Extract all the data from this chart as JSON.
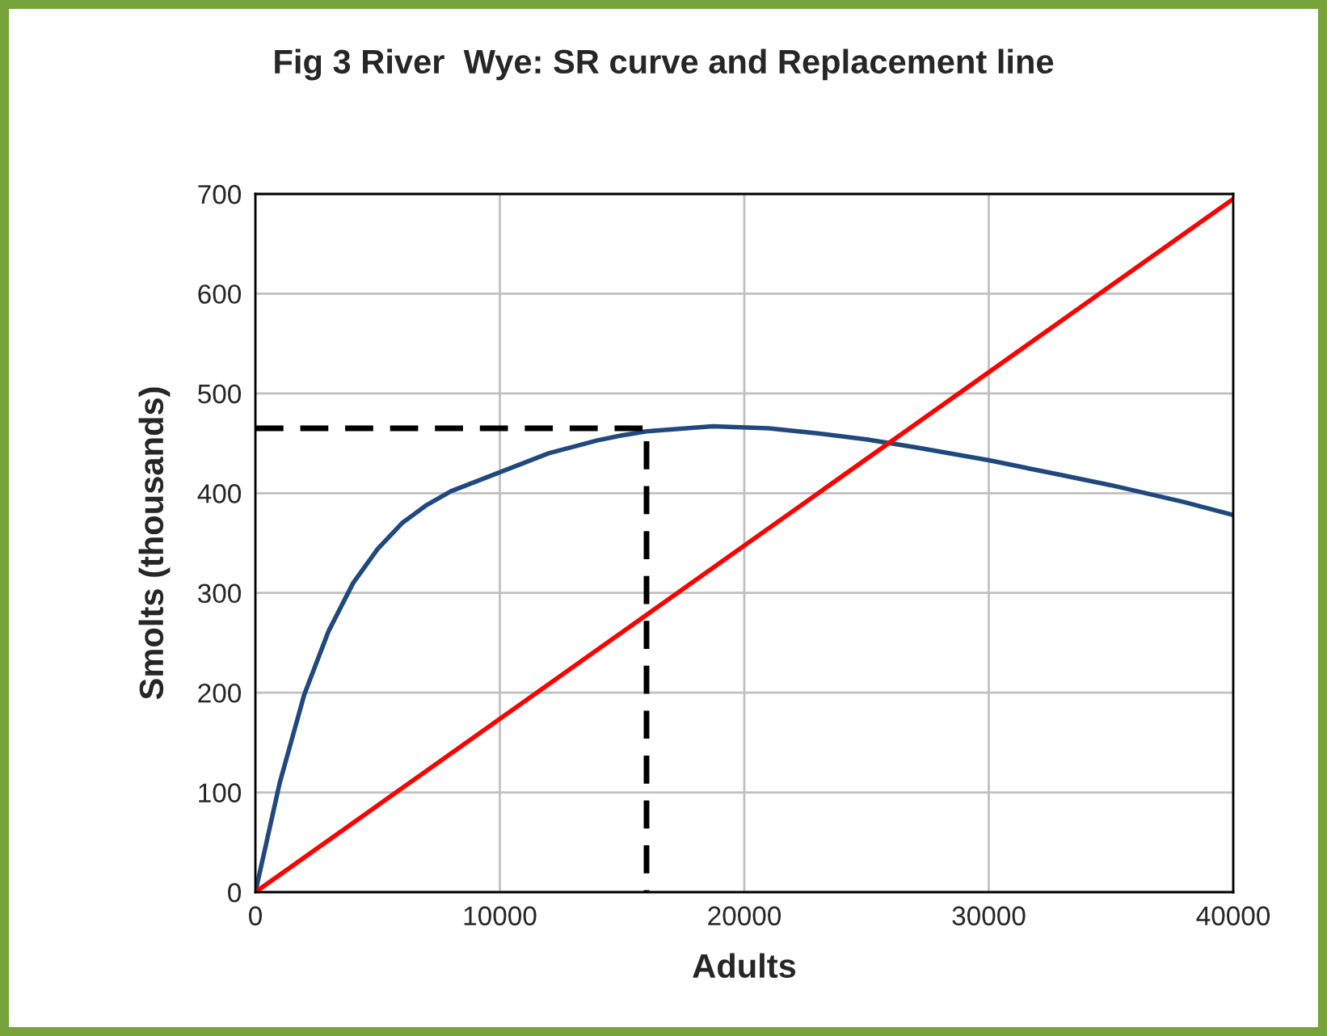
{
  "chart_data": {
    "type": "line",
    "title": "Fig 3 River  Wye: SR curve and Replacement line",
    "xlabel": "Adults",
    "ylabel": "Smolts (thousands)",
    "series": [
      {
        "color": "#1f497d",
        "x": [
          0,
          500,
          1000,
          2000,
          3000,
          4000,
          5000,
          6000,
          7000,
          8000,
          10000,
          12000,
          14000,
          15000,
          16000,
          18700,
          21000,
          23000,
          25000,
          27000,
          30000,
          33000,
          35000,
          38000,
          40000
        ],
        "values": [
          0,
          55,
          110,
          198,
          262,
          310,
          344,
          370,
          388,
          402,
          421,
          440,
          453,
          458,
          462,
          467,
          465,
          460,
          454,
          446,
          433,
          418,
          408,
          391,
          378
        ]
      },
      {
        "color": "#ff0000",
        "x": [
          0,
          40000
        ],
        "values": [
          0,
          695
        ]
      },
      {
        "color": "#000000",
        "line_style": "dashed",
        "x": [
          0,
          16000,
          16000
        ],
        "values": [
          465,
          465,
          0
        ]
      }
    ],
    "xlim": [
      0,
      40000
    ],
    "xticks": [
      0,
      10000,
      20000,
      30000,
      40000
    ],
    "ylim": [
      0,
      700
    ],
    "yticks": [
      0,
      100,
      200,
      300,
      400,
      500,
      600,
      700
    ],
    "grid": true,
    "legend": false,
    "marker": "none",
    "line_style": "solid"
  }
}
